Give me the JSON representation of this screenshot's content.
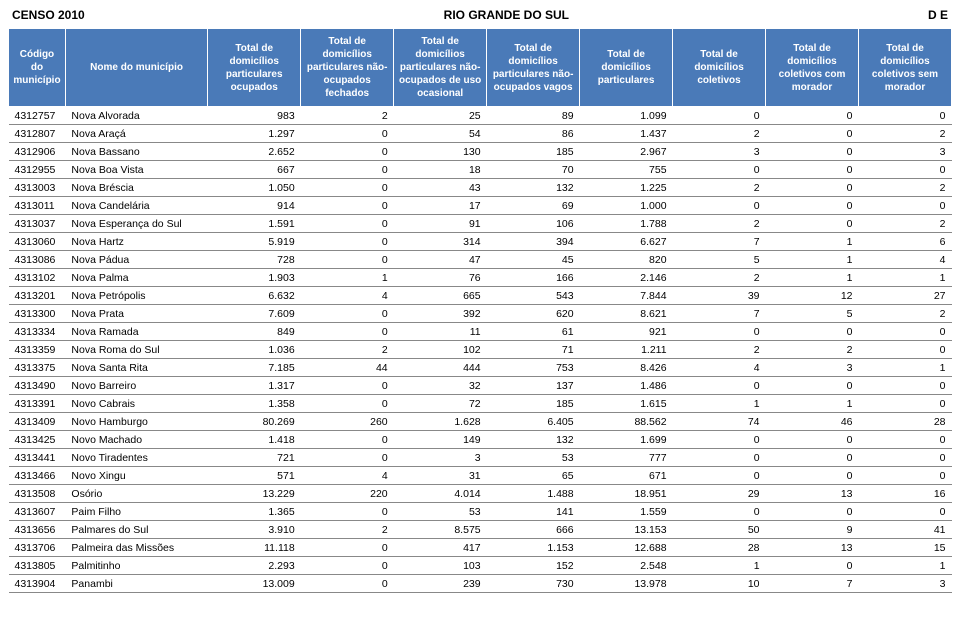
{
  "header": {
    "left": "CENSO 2010",
    "center": "RIO GRANDE DO SUL",
    "right": "D E"
  },
  "table": {
    "header_bg": "#4a7ab8",
    "header_fg": "#ffffff",
    "row_border": "#888888",
    "columns": [
      "Código do município",
      "Nome do município",
      "Total de domicílios particulares ocupados",
      "Total de domicílios particulares não-ocupados fechados",
      "Total de domicílios particulares não-ocupados de uso ocasional",
      "Total de domicílios particulares não-ocupados vagos",
      "Total de domicílios particulares",
      "Total de domicílios coletivos",
      "Total de domicílios coletivos com morador",
      "Total de domicílios coletivos sem morador"
    ],
    "rows": [
      [
        "4312757",
        "Nova Alvorada",
        "983",
        "2",
        "25",
        "89",
        "1.099",
        "0",
        "0",
        "0"
      ],
      [
        "4312807",
        "Nova Araçá",
        "1.297",
        "0",
        "54",
        "86",
        "1.437",
        "2",
        "0",
        "2"
      ],
      [
        "4312906",
        "Nova Bassano",
        "2.652",
        "0",
        "130",
        "185",
        "2.967",
        "3",
        "0",
        "3"
      ],
      [
        "4312955",
        "Nova Boa Vista",
        "667",
        "0",
        "18",
        "70",
        "755",
        "0",
        "0",
        "0"
      ],
      [
        "4313003",
        "Nova Bréscia",
        "1.050",
        "0",
        "43",
        "132",
        "1.225",
        "2",
        "0",
        "2"
      ],
      [
        "4313011",
        "Nova Candelária",
        "914",
        "0",
        "17",
        "69",
        "1.000",
        "0",
        "0",
        "0"
      ],
      [
        "4313037",
        "Nova Esperança do Sul",
        "1.591",
        "0",
        "91",
        "106",
        "1.788",
        "2",
        "0",
        "2"
      ],
      [
        "4313060",
        "Nova Hartz",
        "5.919",
        "0",
        "314",
        "394",
        "6.627",
        "7",
        "1",
        "6"
      ],
      [
        "4313086",
        "Nova Pádua",
        "728",
        "0",
        "47",
        "45",
        "820",
        "5",
        "1",
        "4"
      ],
      [
        "4313102",
        "Nova Palma",
        "1.903",
        "1",
        "76",
        "166",
        "2.146",
        "2",
        "1",
        "1"
      ],
      [
        "4313201",
        "Nova Petrópolis",
        "6.632",
        "4",
        "665",
        "543",
        "7.844",
        "39",
        "12",
        "27"
      ],
      [
        "4313300",
        "Nova Prata",
        "7.609",
        "0",
        "392",
        "620",
        "8.621",
        "7",
        "5",
        "2"
      ],
      [
        "4313334",
        "Nova Ramada",
        "849",
        "0",
        "11",
        "61",
        "921",
        "0",
        "0",
        "0"
      ],
      [
        "4313359",
        "Nova Roma do Sul",
        "1.036",
        "2",
        "102",
        "71",
        "1.211",
        "2",
        "2",
        "0"
      ],
      [
        "4313375",
        "Nova Santa Rita",
        "7.185",
        "44",
        "444",
        "753",
        "8.426",
        "4",
        "3",
        "1"
      ],
      [
        "4313490",
        "Novo Barreiro",
        "1.317",
        "0",
        "32",
        "137",
        "1.486",
        "0",
        "0",
        "0"
      ],
      [
        "4313391",
        "Novo Cabrais",
        "1.358",
        "0",
        "72",
        "185",
        "1.615",
        "1",
        "1",
        "0"
      ],
      [
        "4313409",
        "Novo Hamburgo",
        "80.269",
        "260",
        "1.628",
        "6.405",
        "88.562",
        "74",
        "46",
        "28"
      ],
      [
        "4313425",
        "Novo Machado",
        "1.418",
        "0",
        "149",
        "132",
        "1.699",
        "0",
        "0",
        "0"
      ],
      [
        "4313441",
        "Novo Tiradentes",
        "721",
        "0",
        "3",
        "53",
        "777",
        "0",
        "0",
        "0"
      ],
      [
        "4313466",
        "Novo Xingu",
        "571",
        "4",
        "31",
        "65",
        "671",
        "0",
        "0",
        "0"
      ],
      [
        "4313508",
        "Osório",
        "13.229",
        "220",
        "4.014",
        "1.488",
        "18.951",
        "29",
        "13",
        "16"
      ],
      [
        "4313607",
        "Paim Filho",
        "1.365",
        "0",
        "53",
        "141",
        "1.559",
        "0",
        "0",
        "0"
      ],
      [
        "4313656",
        "Palmares do Sul",
        "3.910",
        "2",
        "8.575",
        "666",
        "13.153",
        "50",
        "9",
        "41"
      ],
      [
        "4313706",
        "Palmeira das Missões",
        "11.118",
        "0",
        "417",
        "1.153",
        "12.688",
        "28",
        "13",
        "15"
      ],
      [
        "4313805",
        "Palmitinho",
        "2.293",
        "0",
        "103",
        "152",
        "2.548",
        "1",
        "0",
        "1"
      ],
      [
        "4313904",
        "Panambi",
        "13.009",
        "0",
        "239",
        "730",
        "13.978",
        "10",
        "7",
        "3"
      ]
    ]
  }
}
